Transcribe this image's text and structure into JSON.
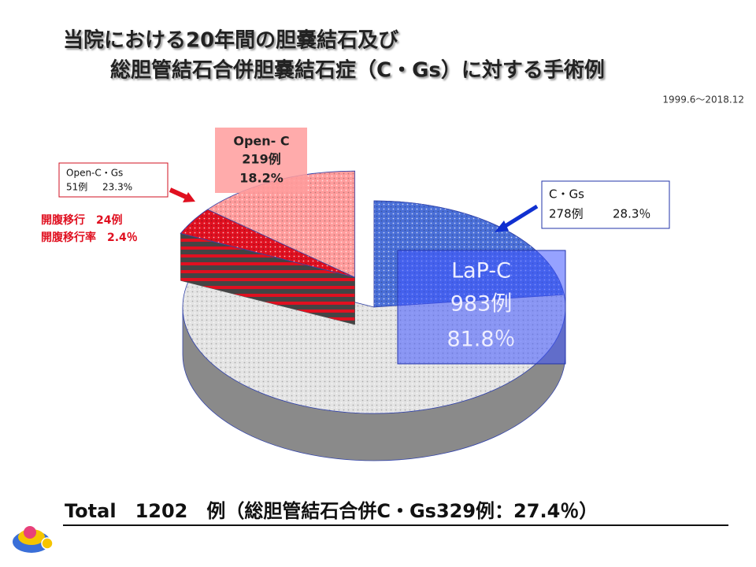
{
  "chart_data": {
    "type": "pie",
    "title": [
      "当院における20年間の胆嚢結石及び",
      "総胆管結石合併胆嚢結石症（C・Gs）に対する手術例"
    ],
    "subtitle": "1999.6～2018.12",
    "categories": [
      "LaP-C",
      "Open- C"
    ],
    "values": [
      983,
      219
    ],
    "value_labels": [
      "983例",
      "219例"
    ],
    "percent_labels": [
      "81.8％",
      "18.2%"
    ],
    "colors": [
      "#e4e4e4",
      "#ff9c9c"
    ],
    "exploded": [
      false,
      true
    ],
    "sub_series": {
      "categories": [
        "C・Gs",
        "Open-C・Gs"
      ],
      "values": [
        278,
        51
      ],
      "value_labels": [
        "278例",
        "51例"
      ],
      "percent_labels": [
        "28.3％",
        "23.3%"
      ],
      "colors": [
        "#4a6fd8",
        "#e01020"
      ]
    },
    "annotations": [
      "開腹移行　24例",
      "開腹移行率　2.4％"
    ],
    "footer": "Total　1202　例（総胆管結石合併C・Gs329例：27.4％）"
  }
}
